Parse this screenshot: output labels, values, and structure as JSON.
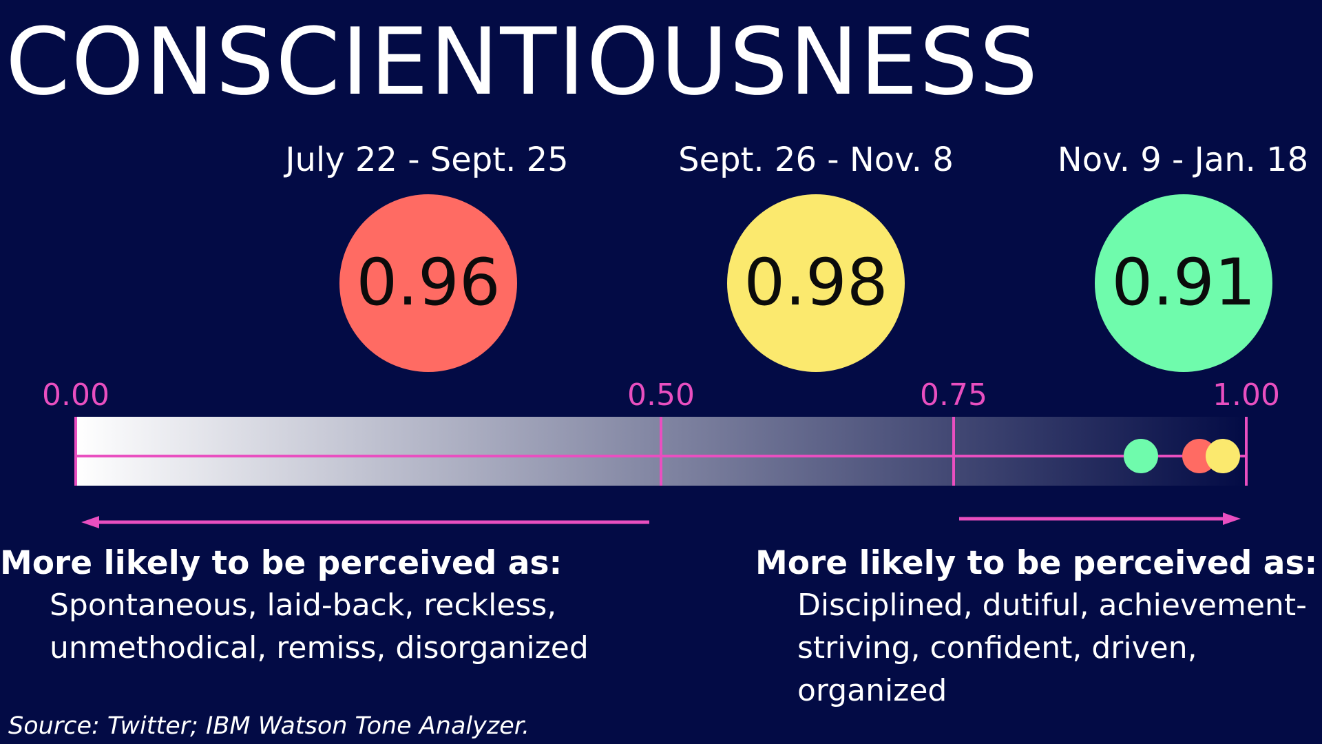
{
  "title": "CONSCIENTIOUSNESS",
  "chart_data": {
    "type": "scatter",
    "title": "CONSCIENTIOUSNESS",
    "xlim": [
      0,
      1
    ],
    "ticks": [
      "0.00",
      "0.50",
      "0.75",
      "1.00"
    ],
    "tick_values": [
      0,
      0.5,
      0.75,
      1.0
    ],
    "series": [
      {
        "name": "July 22 - Sept. 25",
        "label": "0.96",
        "value": 0.96,
        "color": "#ff6b63"
      },
      {
        "name": "Sept. 26 - Nov. 8",
        "label": "0.98",
        "value": 0.98,
        "color": "#fbe96e"
      },
      {
        "name": "Nov. 9 - Jan. 18",
        "label": "0.91",
        "value": 0.91,
        "color": "#6ffbac"
      }
    ],
    "scale_colors": {
      "low": "#ffffff",
      "high": "#030b45",
      "accent": "#e94fc0"
    }
  },
  "low_description": {
    "heading": "More likely to be perceived as:",
    "lines": [
      "Spontaneous, laid-back, reckless,",
      "unmethodical, remiss, disorganized"
    ]
  },
  "high_description": {
    "heading": "More likely to be perceived as:",
    "lines": [
      "Disciplined, dutiful, achievement-",
      "striving, confident, driven,",
      "organized"
    ]
  },
  "source": "Source: Twitter; IBM Watson Tone Analyzer."
}
